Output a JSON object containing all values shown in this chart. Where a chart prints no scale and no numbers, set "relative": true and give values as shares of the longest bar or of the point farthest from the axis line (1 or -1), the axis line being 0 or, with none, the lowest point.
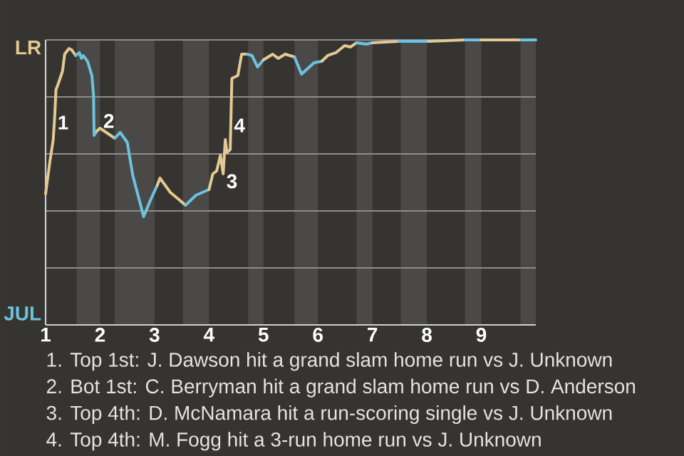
{
  "chart_data": {
    "type": "line",
    "relative": true,
    "xlim": [
      1,
      10
    ],
    "xticks": [
      1,
      2,
      3,
      4,
      5,
      6,
      7,
      8,
      9
    ],
    "grid": "y",
    "bands": [
      {
        "axis": "x",
        "from": 1.57,
        "to": 2,
        "color": "#4b4947"
      },
      {
        "axis": "x",
        "from": 2.27,
        "to": 3,
        "color": "#4b4947"
      },
      {
        "axis": "x",
        "from": 3.52,
        "to": 4,
        "color": "#4b4947"
      },
      {
        "axis": "x",
        "from": 4.72,
        "to": 5,
        "color": "#4b4947"
      },
      {
        "axis": "x",
        "from": 5.57,
        "to": 6,
        "color": "#4b4947"
      },
      {
        "axis": "x",
        "from": 6.71,
        "to": 7,
        "color": "#4b4947"
      },
      {
        "axis": "x",
        "from": 7.52,
        "to": 8,
        "color": "#4b4947"
      },
      {
        "axis": "x",
        "from": 8.7,
        "to": 9,
        "color": "#4b4947"
      },
      {
        "axis": "x",
        "from": 9.72,
        "to": 10,
        "color": "#4b4947"
      }
    ],
    "series": [
      {
        "color": "#e3c98f",
        "x": [
          1,
          1.02,
          1.08,
          1.14,
          1.17,
          1.19,
          1.23,
          1.31,
          1.35,
          1.43,
          1.48,
          1.55
        ],
        "values": [
          0.46,
          0.49,
          0.575,
          0.65,
          0.74,
          0.825,
          0.845,
          0.89,
          0.95,
          0.97,
          0.965,
          0.945
        ]
      },
      {
        "color": "#6cc3dc",
        "x": [
          1.55,
          1.62,
          1.66,
          1.69,
          1.77,
          1.85,
          1.88,
          1.89,
          1.94
        ],
        "values": [
          0.945,
          0.955,
          0.935,
          0.945,
          0.925,
          0.875,
          0.805,
          0.665,
          0.68
        ]
      },
      {
        "color": "#e3c990",
        "x": [
          1.94,
          2,
          2.27
        ],
        "values": [
          0.68,
          0.69,
          0.655
        ]
      },
      {
        "color": "#6cc3dd",
        "x": [
          2.27,
          2.37,
          2.5,
          2.6,
          2.8,
          2.93,
          3.05
        ],
        "values": [
          0.655,
          0.675,
          0.64,
          0.525,
          0.38,
          0.44,
          0.49
        ]
      },
      {
        "color": "#e3c991",
        "x": [
          3.05,
          3.1,
          3.29,
          3.57
        ],
        "values": [
          0.49,
          0.515,
          0.465,
          0.42
        ]
      },
      {
        "color": "#6cc3de",
        "x": [
          3.57,
          3.76,
          4
        ],
        "values": [
          0.42,
          0.455,
          0.475
        ]
      },
      {
        "color": "#e3c992",
        "x": [
          4,
          4.07,
          4.14,
          4.21,
          4.26,
          4.3,
          4.33,
          4.39,
          4.42,
          4.53,
          4.6,
          4.7
        ],
        "values": [
          0.475,
          0.53,
          0.54,
          0.595,
          0.53,
          0.65,
          0.605,
          0.615,
          0.865,
          0.875,
          0.95,
          0.95
        ]
      },
      {
        "color": "#6cc3df",
        "x": [
          4.7,
          4.79,
          4.89,
          5
        ],
        "values": [
          0.95,
          0.945,
          0.905,
          0.93
        ]
      },
      {
        "color": "#e3c993",
        "x": [
          5,
          5.17,
          5.27,
          5.4,
          5.57
        ],
        "values": [
          0.93,
          0.95,
          0.935,
          0.95,
          0.94
        ]
      },
      {
        "color": "#6cc3e0",
        "x": [
          5.57,
          5.7,
          5.93,
          6.07
        ],
        "values": [
          0.94,
          0.88,
          0.92,
          0.925
        ]
      },
      {
        "color": "#e3c994",
        "x": [
          6.07,
          6.18,
          6.33,
          6.49,
          6.6,
          6.71
        ],
        "values": [
          0.925,
          0.945,
          0.955,
          0.98,
          0.975,
          0.99
        ]
      },
      {
        "color": "#6cc3e1",
        "x": [
          6.71,
          6.89,
          7
        ],
        "values": [
          0.99,
          0.985,
          0.99
        ]
      },
      {
        "color": "#e3c995",
        "x": [
          7,
          7.48
        ],
        "values": [
          0.99,
          0.995
        ]
      },
      {
        "color": "#6cc3e2",
        "x": [
          7.48,
          8.03
        ],
        "values": [
          0.995,
          0.995
        ]
      },
      {
        "color": "#e3c996",
        "x": [
          8.03,
          8.7
        ],
        "values": [
          0.995,
          1
        ]
      },
      {
        "color": "#6cc3e3",
        "x": [
          8.7,
          9
        ],
        "values": [
          1,
          1
        ]
      },
      {
        "color": "#e3c997",
        "x": [
          9,
          9.72
        ],
        "values": [
          1,
          1
        ]
      },
      {
        "color": "#6cc3e4",
        "x": [
          9.72,
          10
        ],
        "values": [
          1,
          1
        ]
      }
    ],
    "annotations": [
      {
        "text": "1",
        "x": 1.16,
        "y": 0.71
      },
      {
        "text": "2",
        "x": 2,
        "y": 0.69
      },
      {
        "text": "3",
        "x": 4.26,
        "y": 0.53
      },
      {
        "text": "4",
        "x": 4.4,
        "y": 0.7
      },
      "LR",
      "JUL",
      "1. Top 1st: J. Dawson hit a grand slam home run vs J. Unknown",
      "2. Bot 1st: C. Berryman hit a grand slam home run vs D. Anderson",
      "3. Top 4th: D. McNamara hit a run-scoring single vs J. Unknown",
      "4. Top 4th: M. Fogg hit a 3-run home run vs J. Unknown"
    ]
  }
}
